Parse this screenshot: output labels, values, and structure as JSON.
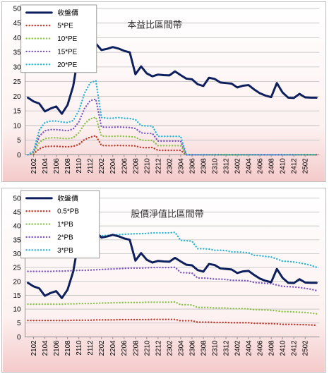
{
  "chart_data": [
    {
      "type": "line",
      "title": "本益比區間帶",
      "xlabel": "",
      "ylabel": "",
      "ylim": [
        0,
        50
      ],
      "yticks": [
        0,
        5,
        10,
        15,
        20,
        25,
        30,
        35,
        40,
        45,
        50
      ],
      "xticks": [
        "2102",
        "2104",
        "2106",
        "2108",
        "2110",
        "2112",
        "2202",
        "2204",
        "2206",
        "2208",
        "2210",
        "2212",
        "2302",
        "2304",
        "2306",
        "2308",
        "2310",
        "2312",
        "2402",
        "2404",
        "2406",
        "2408",
        "2410",
        "2412",
        "2502"
      ],
      "grid": "horizontal",
      "legend_position": "top-left",
      "series": [
        {
          "name": "收盤價",
          "color": "#0d1f5c",
          "dash": "solid",
          "values": [
            19.5,
            18.2,
            17.5,
            14.8,
            15.8,
            16.5,
            14.0,
            17.0,
            23.5,
            35.0,
            37.0,
            38.5,
            38.0,
            35.8,
            36.2,
            36.8,
            36.3,
            35.5,
            35.0,
            27.5,
            30.2,
            27.8,
            26.8,
            27.4,
            27.2,
            27.1,
            28.5,
            27.2,
            26.0,
            25.8,
            24.1,
            23.5,
            26.3,
            25.9,
            24.7,
            24.5,
            24.3,
            23.0,
            23.6,
            23.8,
            22.3,
            21.0,
            20.2,
            19.7,
            24.5,
            21.3,
            19.5,
            19.4,
            20.8,
            19.6,
            19.5,
            19.5
          ]
        },
        {
          "name": "5*PE",
          "color": "#c0392b",
          "dash": "dot",
          "values": [
            0,
            0.3,
            2.0,
            2.8,
            2.9,
            2.9,
            2.8,
            2.7,
            2.9,
            3.5,
            5.2,
            6.0,
            6.5,
            3.2,
            3.1,
            3.1,
            3.2,
            3.1,
            3.1,
            3.0,
            2.5,
            2.4,
            2.5,
            1.5,
            1.5,
            1.5,
            1.5,
            1.5,
            0,
            0,
            0,
            0,
            0,
            0,
            0,
            0,
            0,
            0,
            0,
            0,
            0,
            0,
            0,
            0,
            0,
            0,
            0,
            0,
            0,
            0,
            0,
            0
          ]
        },
        {
          "name": "10*PE",
          "color": "#8bc34a",
          "dash": "dot",
          "values": [
            0,
            0.6,
            4.2,
            5.5,
            5.8,
            5.8,
            5.6,
            5.5,
            5.8,
            7.5,
            10.5,
            12.3,
            12.8,
            6.4,
            6.3,
            6.3,
            6.4,
            6.3,
            6.2,
            6.0,
            5.0,
            4.9,
            4.9,
            3.1,
            3.1,
            3.1,
            3.1,
            3.1,
            0,
            0,
            0,
            0,
            0,
            0,
            0,
            0,
            0,
            0,
            0,
            0,
            0,
            0,
            0,
            0,
            0,
            0,
            0,
            0,
            0,
            0,
            0,
            0
          ]
        },
        {
          "name": "15*PE",
          "color": "#7e57c2",
          "dash": "dot",
          "values": [
            0,
            0.9,
            6.3,
            8.2,
            8.6,
            8.6,
            8.4,
            8.2,
            8.8,
            11.2,
            15.8,
            18.5,
            19.0,
            9.5,
            9.4,
            9.4,
            9.5,
            9.4,
            9.3,
            9.0,
            7.5,
            7.3,
            7.3,
            4.7,
            4.7,
            4.7,
            4.7,
            4.7,
            0,
            0,
            0,
            0,
            0,
            0,
            0,
            0,
            0,
            0,
            0,
            0,
            0,
            0,
            0,
            0,
            0,
            0,
            0,
            0,
            0,
            0,
            0,
            0
          ]
        },
        {
          "name": "20*PE",
          "color": "#29b6d6",
          "dash": "dot",
          "values": [
            0,
            1.2,
            8.4,
            11.0,
            11.5,
            11.5,
            11.2,
            11.0,
            11.7,
            15.0,
            21.0,
            24.6,
            25.3,
            12.7,
            12.5,
            12.5,
            12.7,
            12.5,
            12.4,
            12.0,
            10.0,
            9.8,
            9.8,
            6.3,
            6.3,
            6.3,
            6.3,
            6.3,
            0,
            0,
            0,
            0,
            0,
            0,
            0,
            0,
            0,
            0,
            0,
            0,
            0,
            0,
            0,
            0,
            0,
            0,
            0,
            0,
            0,
            0,
            0,
            0
          ]
        }
      ]
    },
    {
      "type": "line",
      "title": "股價淨值比區間帶",
      "xlabel": "",
      "ylabel": "",
      "ylim": [
        0,
        50
      ],
      "yticks": [
        0,
        5,
        10,
        15,
        20,
        25,
        30,
        35,
        40,
        45,
        50
      ],
      "xticks": [
        "2102",
        "2104",
        "2106",
        "2108",
        "2110",
        "2112",
        "2202",
        "2204",
        "2206",
        "2208",
        "2210",
        "2212",
        "2302",
        "2304",
        "2306",
        "2308",
        "2310",
        "2312",
        "2402",
        "2404",
        "2406",
        "2408",
        "2410",
        "2412",
        "2502"
      ],
      "grid": "horizontal",
      "legend_position": "top-left",
      "series": [
        {
          "name": "收盤價",
          "color": "#0d1f5c",
          "dash": "solid",
          "values": [
            19.5,
            18.2,
            17.5,
            14.8,
            15.8,
            16.5,
            14.0,
            17.0,
            23.5,
            35.0,
            37.0,
            38.5,
            38.0,
            35.8,
            36.2,
            36.8,
            36.3,
            35.5,
            35.0,
            27.5,
            30.2,
            27.8,
            26.8,
            27.4,
            27.2,
            27.1,
            28.5,
            27.2,
            26.0,
            25.8,
            24.1,
            23.5,
            26.3,
            25.9,
            24.7,
            24.5,
            24.3,
            23.0,
            23.6,
            23.8,
            22.3,
            21.0,
            20.2,
            19.7,
            24.5,
            21.3,
            19.5,
            19.4,
            20.8,
            19.6,
            19.5,
            19.5
          ]
        },
        {
          "name": "0.5*PB",
          "color": "#c0392b",
          "dash": "dot",
          "values": [
            5.9,
            5.9,
            5.9,
            5.9,
            5.9,
            5.9,
            5.9,
            5.9,
            6.0,
            6.0,
            6.0,
            6.0,
            6.1,
            6.1,
            6.1,
            6.1,
            6.2,
            6.2,
            6.2,
            6.2,
            6.2,
            6.2,
            6.3,
            6.3,
            6.3,
            6.3,
            6.3,
            5.8,
            5.8,
            5.8,
            5.3,
            5.3,
            5.3,
            5.2,
            5.2,
            5.2,
            5.1,
            5.1,
            5.1,
            5.1,
            4.9,
            4.9,
            4.8,
            4.8,
            4.7,
            4.5,
            4.5,
            4.5,
            4.4,
            4.4,
            4.3,
            4.2
          ]
        },
        {
          "name": "1*PB",
          "color": "#8bc34a",
          "dash": "dot",
          "values": [
            11.8,
            11.8,
            11.8,
            11.8,
            11.8,
            11.8,
            11.8,
            11.9,
            11.9,
            12.0,
            12.0,
            12.0,
            12.1,
            12.2,
            12.2,
            12.3,
            12.3,
            12.4,
            12.4,
            12.4,
            12.4,
            12.5,
            12.5,
            12.5,
            12.5,
            12.5,
            12.6,
            11.6,
            11.6,
            11.5,
            10.6,
            10.6,
            10.6,
            10.4,
            10.4,
            10.4,
            10.2,
            10.2,
            10.2,
            10.1,
            9.8,
            9.8,
            9.7,
            9.6,
            9.4,
            9.1,
            9.1,
            9.0,
            8.9,
            8.8,
            8.6,
            8.3
          ]
        },
        {
          "name": "2*PB",
          "color": "#7e57c2",
          "dash": "dot",
          "values": [
            23.6,
            23.6,
            23.6,
            23.6,
            23.6,
            23.7,
            23.7,
            23.8,
            23.9,
            24.0,
            24.0,
            24.1,
            24.2,
            24.3,
            24.4,
            24.5,
            24.6,
            24.7,
            24.8,
            24.8,
            24.8,
            24.9,
            25.0,
            25.0,
            25.0,
            25.0,
            25.1,
            23.2,
            23.1,
            23.0,
            21.2,
            21.2,
            21.1,
            20.8,
            20.8,
            20.7,
            20.4,
            20.4,
            20.3,
            20.2,
            19.6,
            19.5,
            19.3,
            19.2,
            18.7,
            18.2,
            18.1,
            18.0,
            17.8,
            17.5,
            17.2,
            16.7
          ]
        },
        {
          "name": "3*PB",
          "color": "#29b6d6",
          "dash": "dot",
          "values": [
            35.4,
            35.5,
            35.5,
            35.5,
            35.5,
            35.6,
            35.6,
            35.7,
            35.8,
            36.0,
            36.1,
            36.2,
            36.4,
            36.5,
            36.6,
            36.8,
            36.9,
            37.0,
            37.1,
            37.2,
            37.2,
            37.3,
            37.5,
            37.5,
            37.5,
            37.5,
            37.7,
            34.8,
            34.7,
            34.5,
            31.8,
            31.8,
            31.7,
            31.2,
            31.2,
            31.1,
            30.6,
            30.6,
            30.5,
            30.3,
            29.4,
            29.3,
            29.0,
            28.8,
            28.1,
            27.3,
            27.2,
            27.0,
            26.7,
            26.3,
            25.8,
            25.1
          ]
        }
      ]
    }
  ]
}
